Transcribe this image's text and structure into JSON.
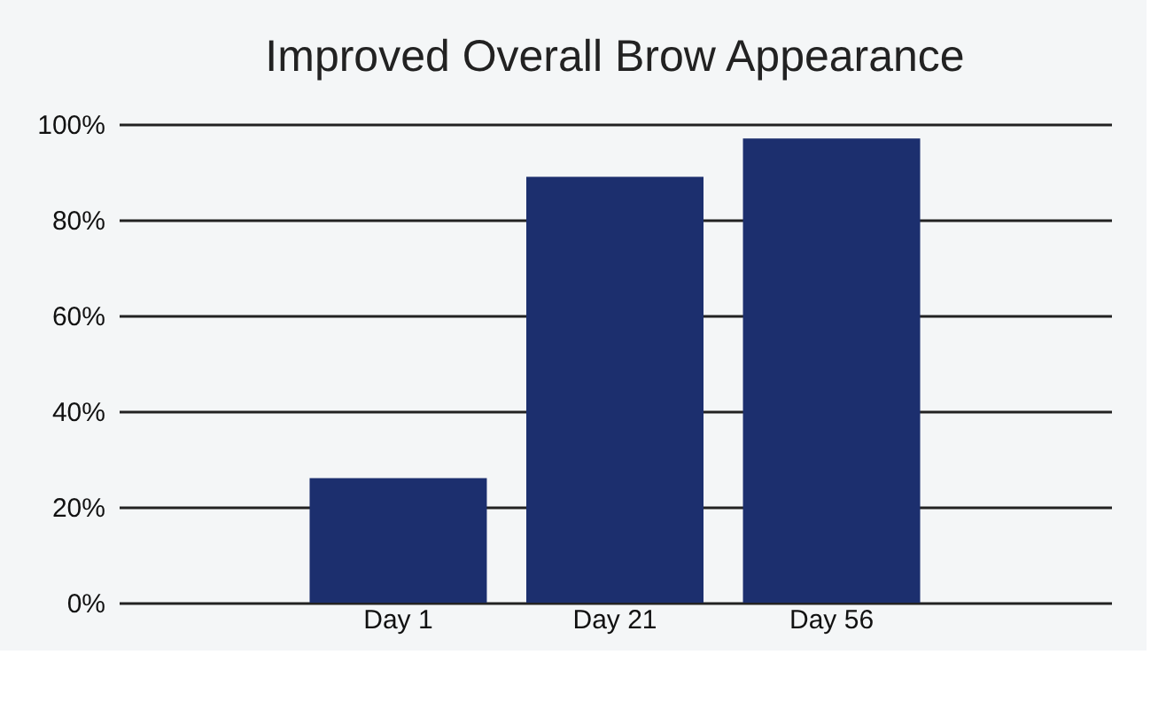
{
  "chart_data": {
    "type": "bar",
    "title": "Improved Overall Brow Appearance",
    "categories": [
      "Day 1",
      "Day 21",
      "Day 56"
    ],
    "values": [
      26,
      89,
      97
    ],
    "color": "#1c2f6e",
    "ylim": [
      0,
      100
    ],
    "yticks": [
      {
        "value": 0,
        "label": "0%"
      },
      {
        "value": 20,
        "label": "20%"
      },
      {
        "value": 40,
        "label": "40%"
      },
      {
        "value": 60,
        "label": "60%"
      },
      {
        "value": 80,
        "label": "80%"
      },
      {
        "value": 100,
        "label": "100%"
      }
    ],
    "grid": "y"
  }
}
